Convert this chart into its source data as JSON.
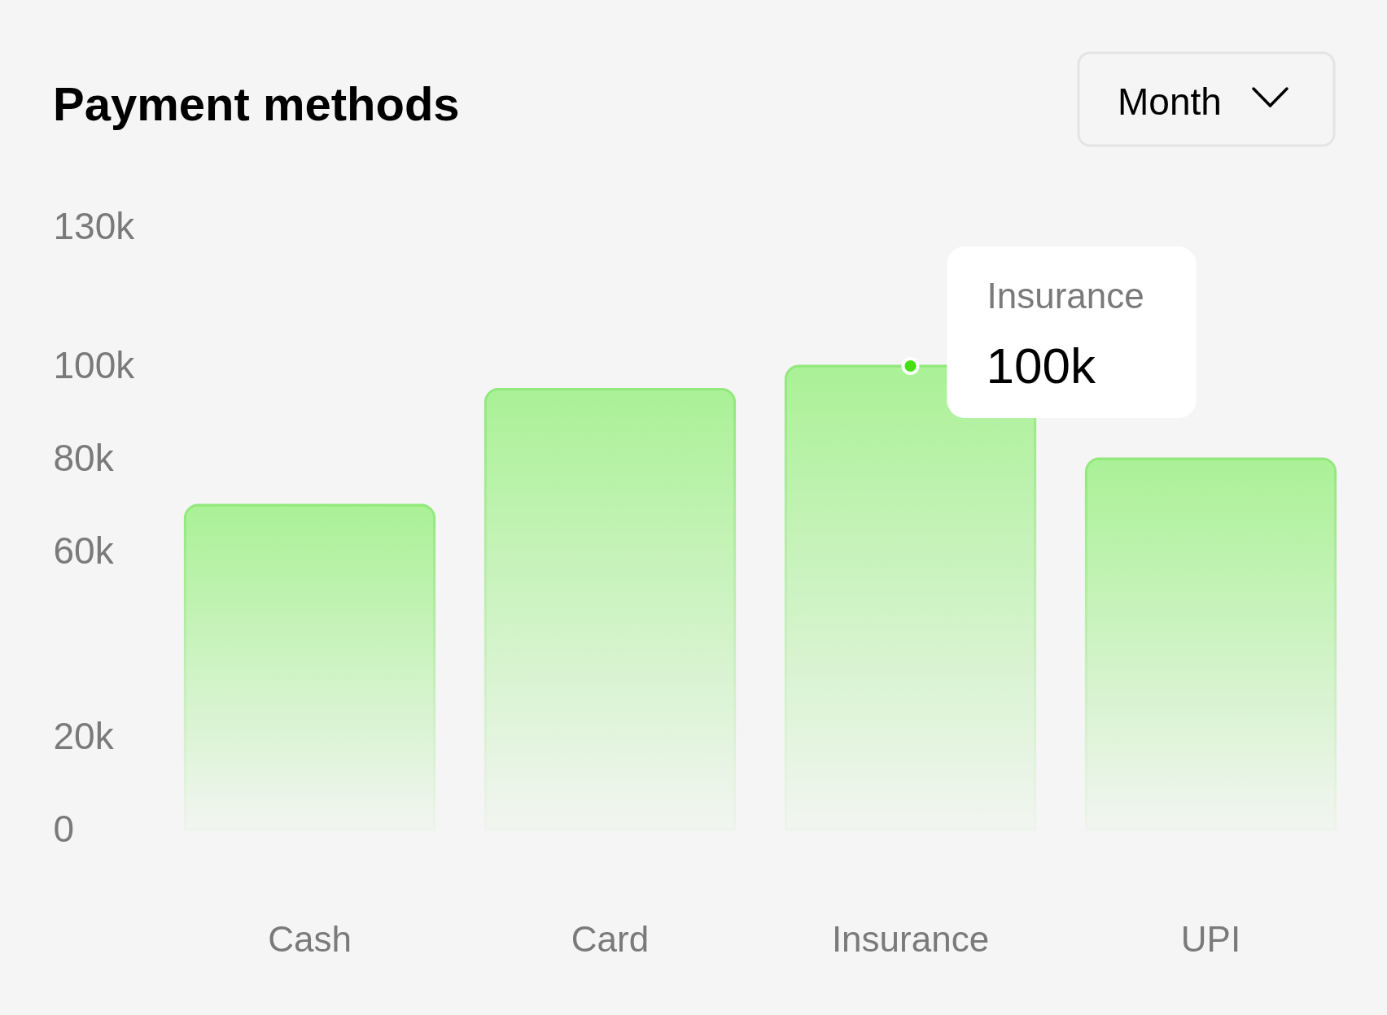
{
  "chart_data": {
    "type": "bar",
    "title": "Payment methods",
    "categories": [
      "Cash",
      "Card",
      "Insurance",
      "UPI"
    ],
    "series": [
      {
        "color": "#aaf196",
        "values": [
          70000,
          95000,
          100000,
          80000
        ],
        "value_labels": [
          null,
          null,
          "100k",
          null
        ]
      },
      {
        "type": "scatter",
        "x": [
          "Insurance"
        ],
        "values": [
          100000
        ],
        "color": "#45df12",
        "marker": "circle"
      }
    ],
    "ylim": [
      0,
      130000
    ],
    "yticks": [
      0,
      {
        "value": 20000,
        "label": "20k"
      },
      {
        "value": 60000,
        "label": "60k"
      },
      {
        "value": 80000,
        "label": "80k"
      },
      {
        "value": 100000,
        "label": "100k"
      },
      {
        "value": 130000,
        "label": "130k"
      }
    ],
    "annotations": [
      "Month"
    ]
  }
}
